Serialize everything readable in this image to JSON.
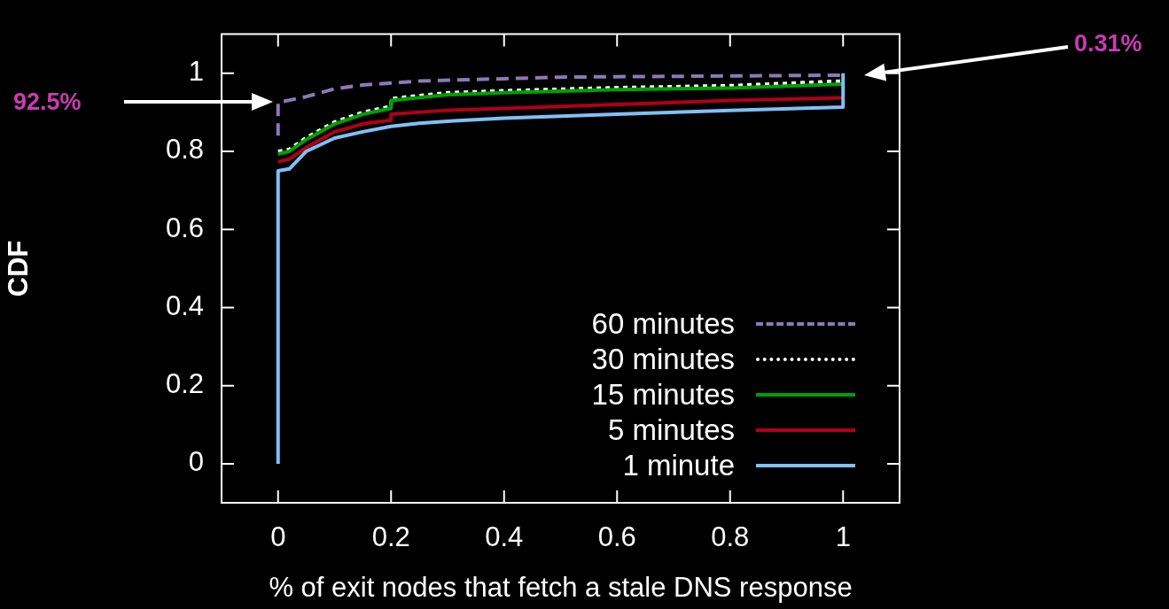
{
  "chart_data": {
    "type": "line",
    "xlabel": "% of exit nodes that fetch a stale DNS response",
    "ylabel": "CDF",
    "xlim": [
      -0.1,
      1.1
    ],
    "ylim": [
      -0.1,
      1.1
    ],
    "xticks": [
      0,
      0.2,
      0.4,
      0.6,
      0.8,
      1
    ],
    "yticks": [
      0,
      0.2,
      0.4,
      0.6,
      0.8,
      1
    ],
    "grid": false,
    "legend": "bottom right",
    "annotations": [
      "92.5%",
      "0.31%"
    ],
    "series": [
      {
        "name": "60 minutes",
        "color": "#8e78b8",
        "line_style": "dashed",
        "x": [
          0,
          0,
          0.05,
          0.1,
          0.15,
          0.25,
          0.5,
          1
        ],
        "values": [
          0.84,
          0.925,
          0.94,
          0.96,
          0.97,
          0.98,
          0.99,
          0.995
        ]
      },
      {
        "name": "30 minutes",
        "color": "#ffffff",
        "line_style": "dotted",
        "x": [
          0,
          0.02,
          0.05,
          0.1,
          0.15,
          0.2,
          0.2,
          0.3,
          0.4,
          0.6,
          0.8,
          1
        ],
        "values": [
          0.8,
          0.805,
          0.835,
          0.875,
          0.9,
          0.915,
          0.935,
          0.95,
          0.955,
          0.963,
          0.968,
          0.98
        ]
      },
      {
        "name": "15 minutes",
        "color": "#00a000",
        "line_style": "solid",
        "x": [
          0,
          0.02,
          0.05,
          0.1,
          0.15,
          0.2,
          0.2,
          0.3,
          0.4,
          0.6,
          0.8,
          1
        ],
        "values": [
          0.793,
          0.8,
          0.83,
          0.87,
          0.895,
          0.91,
          0.93,
          0.945,
          0.95,
          0.958,
          0.962,
          0.972
        ]
      },
      {
        "name": "5 minutes",
        "color": "#b00018",
        "line_style": "solid",
        "x": [
          0,
          0.02,
          0.05,
          0.1,
          0.15,
          0.2,
          0.2,
          0.3,
          0.4,
          0.6,
          0.8,
          1
        ],
        "values": [
          0.773,
          0.78,
          0.81,
          0.85,
          0.87,
          0.88,
          0.895,
          0.905,
          0.91,
          0.92,
          0.93,
          0.937
        ]
      },
      {
        "name": "1 minute",
        "color": "#80c0f8",
        "line_style": "solid",
        "x": [
          0,
          0,
          0.02,
          0.05,
          0.1,
          0.15,
          0.2,
          0.25,
          0.3,
          0.4,
          0.6,
          0.8,
          1,
          1
        ],
        "values": [
          0,
          0.75,
          0.755,
          0.8,
          0.834,
          0.85,
          0.864,
          0.872,
          0.877,
          0.885,
          0.895,
          0.905,
          0.913,
          1.0
        ]
      }
    ]
  }
}
